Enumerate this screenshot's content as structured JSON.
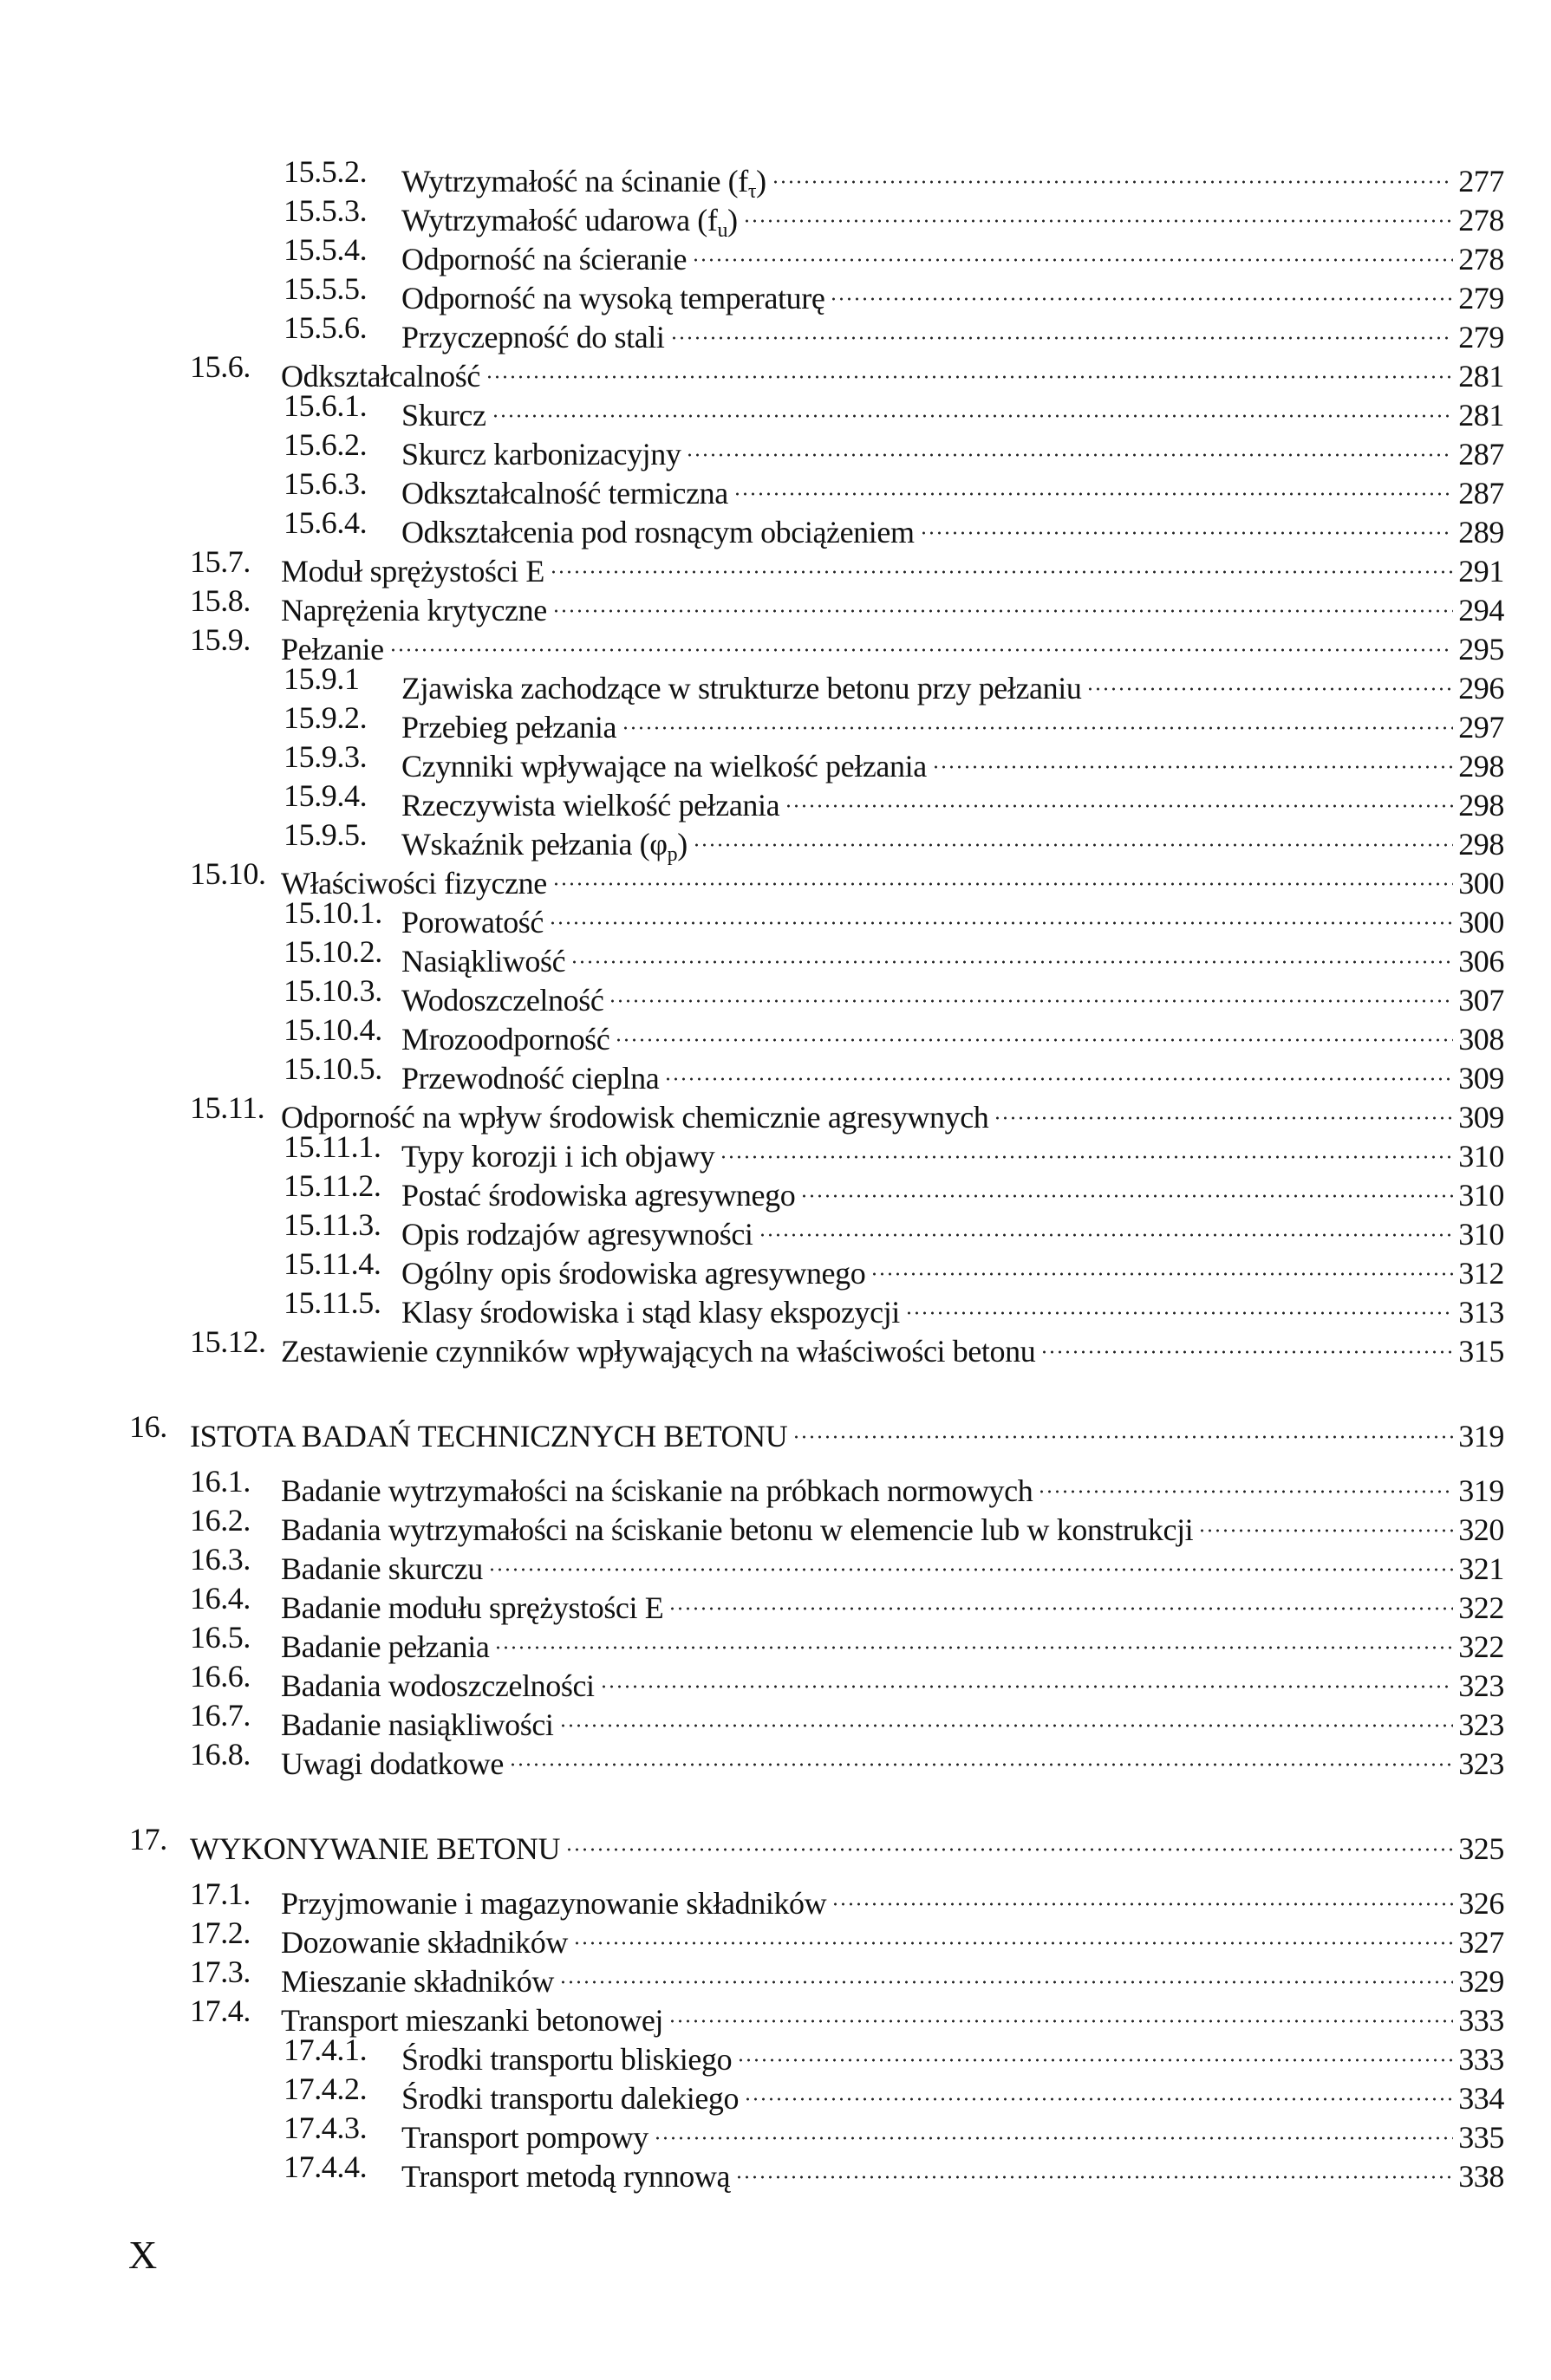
{
  "entries": [
    {
      "level": 2,
      "num": "15.5.2.",
      "title": "Wytrzymałość na ścinanie (f",
      "sub": "τ",
      "after": ")",
      "page": "277"
    },
    {
      "level": 2,
      "num": "15.5.3.",
      "title": "Wytrzymałość udarowa (f",
      "sub": "u",
      "after": ")",
      "page": "278"
    },
    {
      "level": 2,
      "num": "15.5.4.",
      "title": "Odporność na ścieranie",
      "page": "278"
    },
    {
      "level": 2,
      "num": "15.5.5.",
      "title": "Odporność na wysoką temperaturę",
      "page": "279"
    },
    {
      "level": 2,
      "num": "15.5.6.",
      "title": "Przyczepność do stali",
      "page": "279"
    },
    {
      "level": 1,
      "num": "15.6.",
      "title": "Odkształcalność",
      "page": "281"
    },
    {
      "level": 2,
      "num": "15.6.1.",
      "title": "Skurcz",
      "page": "281"
    },
    {
      "level": 2,
      "num": "15.6.2.",
      "title": "Skurcz karbonizacyjny",
      "page": "287"
    },
    {
      "level": 2,
      "num": "15.6.3.",
      "title": "Odkształcalność termiczna",
      "page": "287"
    },
    {
      "level": 2,
      "num": "15.6.4.",
      "title": "Odkształcenia pod rosnącym obciążeniem",
      "page": "289"
    },
    {
      "level": 1,
      "num": "15.7.",
      "title": "Moduł sprężystości E",
      "page": "291"
    },
    {
      "level": 1,
      "num": "15.8.",
      "title": "Naprężenia krytyczne",
      "page": "294"
    },
    {
      "level": 1,
      "num": "15.9.",
      "title": "Pełzanie",
      "page": "295"
    },
    {
      "level": 2,
      "num": "15.9.1",
      "title": "Zjawiska zachodzące w strukturze betonu przy pełzaniu",
      "page": "296"
    },
    {
      "level": 2,
      "num": "15.9.2.",
      "title": "Przebieg pełzania",
      "page": "297"
    },
    {
      "level": 2,
      "num": "15.9.3.",
      "title": "Czynniki wpływające na wielkość pełzania",
      "page": "298"
    },
    {
      "level": 2,
      "num": "15.9.4.",
      "title": "Rzeczywista wielkość pełzania",
      "page": "298"
    },
    {
      "level": 2,
      "num": "15.9.5.",
      "title": "Wskaźnik pełzania (φ",
      "sub": "p",
      "after": ")",
      "page": "298"
    },
    {
      "level": 1,
      "num": "15.10.",
      "title": "Właściwości fizyczne",
      "page": "300"
    },
    {
      "level": 2,
      "num": "15.10.1.",
      "title": "Porowatość",
      "page": "300"
    },
    {
      "level": 2,
      "num": "15.10.2.",
      "title": "Nasiąkliwość",
      "page": "306"
    },
    {
      "level": 2,
      "num": "15.10.3.",
      "title": "Wodoszczelność",
      "page": "307"
    },
    {
      "level": 2,
      "num": "15.10.4.",
      "title": "Mrozoodporność",
      "page": "308"
    },
    {
      "level": 2,
      "num": "15.10.5.",
      "title": "Przewodność cieplna",
      "page": "309"
    },
    {
      "level": 1,
      "num": "15.11.",
      "title": "Odporność na wpływ środowisk chemicznie agresywnych",
      "page": "309"
    },
    {
      "level": 2,
      "num": "15.11.1.",
      "title": "Typy korozji i ich objawy",
      "page": "310"
    },
    {
      "level": 2,
      "num": "15.11.2.",
      "title": "Postać środowiska agresywnego",
      "page": "310"
    },
    {
      "level": 2,
      "num": "15.11.3.",
      "title": "Opis rodzajów agresywności",
      "page": "310"
    },
    {
      "level": 2,
      "num": "15.11.4.",
      "title": "Ogólny opis środowiska agresywnego",
      "page": "312"
    },
    {
      "level": 2,
      "num": "15.11.5.",
      "title": "Klasy środowiska i stąd klasy ekspozycji",
      "page": "313"
    },
    {
      "level": 1,
      "num": "15.12.",
      "title": "Zestawienie czynników wpływających na właściwości betonu",
      "page": "315"
    },
    {
      "level": 0,
      "num": "16.",
      "title": "ISTOTA BADAŃ TECHNICZNYCH BETONU",
      "page": "319"
    },
    {
      "level": 1,
      "num": "16.1.",
      "title": "Badanie wytrzymałości na ściskanie na próbkach normowych",
      "page": "319"
    },
    {
      "level": 1,
      "num": "16.2.",
      "title": "Badania wytrzymałości na ściskanie betonu w elemencie lub w konstrukcji",
      "page": "320"
    },
    {
      "level": 1,
      "num": "16.3.",
      "title": "Badanie skurczu",
      "page": "321"
    },
    {
      "level": 1,
      "num": "16.4.",
      "title": "Badanie modułu sprężystości E",
      "page": "322"
    },
    {
      "level": 1,
      "num": "16.5.",
      "title": "Badanie pełzania",
      "page": "322"
    },
    {
      "level": 1,
      "num": "16.6.",
      "title": "Badania wodoszczelności",
      "page": "323"
    },
    {
      "level": 1,
      "num": "16.7.",
      "title": "Badanie nasiąkliwości",
      "page": "323"
    },
    {
      "level": 1,
      "num": "16.8.",
      "title": "Uwagi dodatkowe",
      "page": "323"
    },
    {
      "level": 0,
      "num": "17.",
      "title": "WYKONYWANIE BETONU",
      "page": "325"
    },
    {
      "level": 1,
      "num": "17.1.",
      "title": "Przyjmowanie i magazynowanie składników",
      "page": "326"
    },
    {
      "level": 1,
      "num": "17.2.",
      "title": "Dozowanie składników",
      "page": "327"
    },
    {
      "level": 1,
      "num": "17.3.",
      "title": "Mieszanie składników",
      "page": "329"
    },
    {
      "level": 1,
      "num": "17.4.",
      "title": "Transport mieszanki betonowej",
      "page": "333"
    },
    {
      "level": 2,
      "num": "17.4.1.",
      "title": "Środki transportu bliskiego",
      "page": "333"
    },
    {
      "level": 2,
      "num": "17.4.2.",
      "title": "Środki transportu dalekiego",
      "page": "334"
    },
    {
      "level": 2,
      "num": "17.4.3.",
      "title": "Transport pompowy",
      "page": "335"
    },
    {
      "level": 2,
      "num": "17.4.4.",
      "title": "Transport metodą rynnową",
      "page": "338"
    }
  ],
  "folio": "X"
}
